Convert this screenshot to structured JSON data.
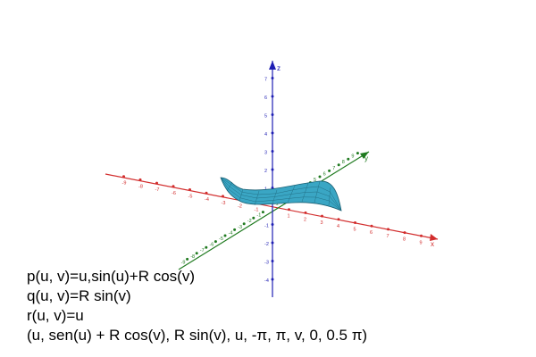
{
  "axes": {
    "x": {
      "name": "x",
      "color": "#d22d2d",
      "negative_ticks": [
        "-9",
        "-8",
        "-7",
        "-6",
        "-5",
        "-4",
        "-3",
        "-2",
        "-1"
      ],
      "positive_ticks": [
        "1",
        "2",
        "3",
        "4",
        "5",
        "6",
        "7",
        "8",
        "9"
      ]
    },
    "y": {
      "name": "y",
      "color": "#1f7a1f",
      "negative_ticks": [
        "-9",
        "-8",
        "-7",
        "-6",
        "-5",
        "-4",
        "-3",
        "-2",
        "-1"
      ],
      "positive_ticks": [
        "1",
        "2",
        "3",
        "4",
        "5",
        "6",
        "7",
        "8",
        "9"
      ]
    },
    "z": {
      "name": "z",
      "color": "#1f1fb4",
      "negative_ticks": [
        "-4",
        "-3",
        "-2",
        "-1"
      ],
      "positive_ticks": [
        "1",
        "2",
        "3",
        "4",
        "5",
        "6",
        "7"
      ]
    }
  },
  "surface": {
    "color": "#3aa6c4",
    "edge_color": "#1a5f73"
  },
  "equations": [
    "p(u, v)=u,sin(u)+R cos(v)",
    "q(u, v)=R sin(v)",
    "r(u, v)=u",
    "(u, sen(u) + R cos(v), R sin(v), u, -π, π, v, 0, 0.5 π)"
  ]
}
